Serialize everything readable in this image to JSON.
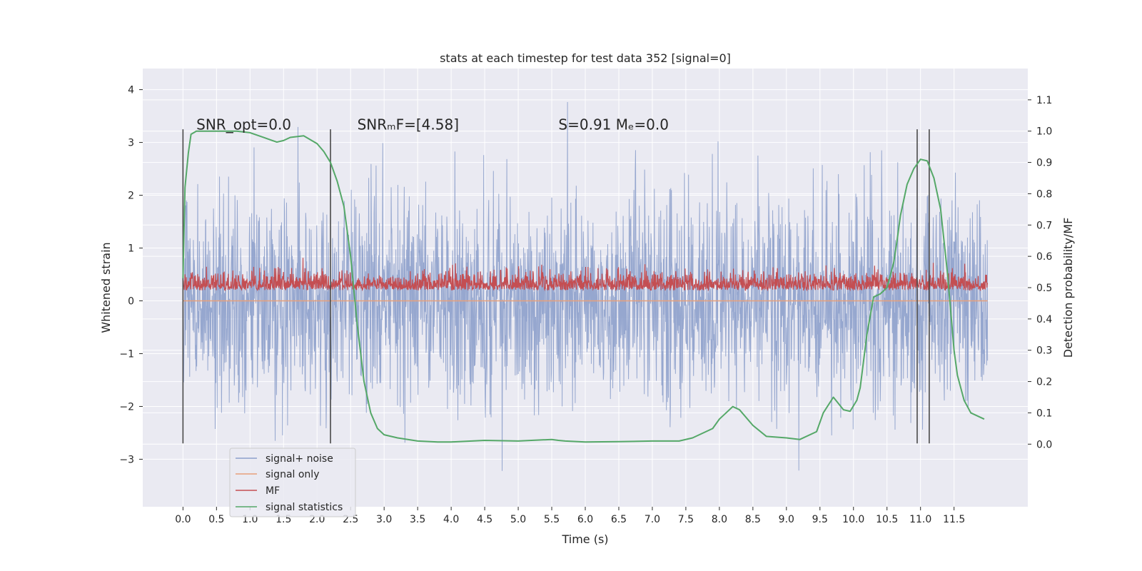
{
  "chart_data": {
    "type": "line",
    "title": "stats at each timestep for test data 352 [signal=0]",
    "xlabel": "Time (s)",
    "ylabel": "Whitened strain",
    "ylabel_right": "Detection probability/MF",
    "xlim": [
      -0.6,
      12.6
    ],
    "ylim": [
      -3.9,
      4.4
    ],
    "ylim_right": [
      -0.2,
      1.2
    ],
    "x_ticks": [
      "0.0",
      "0.5",
      "1.0",
      "1.5",
      "2.0",
      "2.5",
      "3.0",
      "3.5",
      "4.0",
      "4.5",
      "5.0",
      "5.5",
      "6.0",
      "6.5",
      "7.0",
      "7.5",
      "8.0",
      "8.5",
      "9.0",
      "9.5",
      "10.0",
      "10.5",
      "11.0",
      "11.5"
    ],
    "y_ticks_left": [
      "4",
      "3",
      "2",
      "1",
      "0",
      "−1",
      "−2",
      "−3"
    ],
    "y_ticks_right": [
      "1.1",
      "1.0",
      "0.9",
      "0.8",
      "0.7",
      "0.6",
      "0.5",
      "0.4",
      "0.3",
      "0.2",
      "0.1",
      "0.0"
    ],
    "grid": true,
    "legend_placement": "lower-left",
    "vertical_markers_x": [
      0.0,
      2.2,
      10.95,
      11.13
    ],
    "vertical_markers_ylim": [
      -2.7,
      3.25
    ],
    "annotations": [
      {
        "id": "snr-opt",
        "text": "SNR_opt=0.0",
        "x": 0.2,
        "y": 3.35
      },
      {
        "id": "snr-mf",
        "text": "SNRₘF=[4.58]",
        "x": 2.6,
        "y": 3.35
      },
      {
        "id": "s-mc",
        "text": "S=0.91   Mₑ=0.0",
        "x": 5.6,
        "y": 3.35
      }
    ],
    "series": [
      {
        "name": "signal+ noise",
        "color": "#8da0cb",
        "axis": "left",
        "kind": "noise",
        "x_range": [
          0.0,
          12.0
        ],
        "approx_sigma": 1.0,
        "approx_range": [
          -3.4,
          4.1
        ]
      },
      {
        "name": "signal only",
        "color": "#e8a07a",
        "axis": "left",
        "kind": "flat",
        "x": [
          0.0,
          12.0
        ],
        "y": [
          0.0,
          0.0
        ]
      },
      {
        "name": "MF",
        "color": "#c44e52",
        "axis": "left",
        "kind": "noise",
        "x_range": [
          0.0,
          12.0
        ],
        "approx_baseline": 0.25,
        "approx_range": [
          0.0,
          1.0
        ]
      },
      {
        "name": "signal statistics",
        "color": "#55a868",
        "axis": "right",
        "kind": "line",
        "x": [
          0.0,
          0.03,
          0.08,
          0.12,
          0.2,
          0.4,
          0.8,
          1.0,
          1.2,
          1.4,
          1.5,
          1.6,
          1.8,
          2.0,
          2.1,
          2.2,
          2.3,
          2.4,
          2.5,
          2.6,
          2.7,
          2.8,
          2.9,
          3.0,
          3.2,
          3.5,
          3.8,
          4.0,
          4.5,
          5.0,
          5.5,
          5.6,
          5.7,
          6.0,
          6.5,
          7.0,
          7.4,
          7.6,
          7.8,
          7.9,
          8.0,
          8.1,
          8.2,
          8.3,
          8.5,
          8.7,
          9.0,
          9.2,
          9.45,
          9.55,
          9.7,
          9.85,
          9.95,
          10.05,
          10.1,
          10.2,
          10.3,
          10.4,
          10.5,
          10.6,
          10.65,
          10.7,
          10.8,
          10.9,
          11.0,
          11.1,
          11.2,
          11.3,
          11.4,
          11.5,
          11.55,
          11.65,
          11.75,
          11.85,
          11.95
        ],
        "y": [
          0.53,
          0.82,
          0.93,
          0.99,
          1.0,
          1.0,
          1.0,
          0.995,
          0.98,
          0.965,
          0.97,
          0.98,
          0.985,
          0.96,
          0.935,
          0.9,
          0.84,
          0.76,
          0.6,
          0.38,
          0.2,
          0.1,
          0.05,
          0.03,
          0.02,
          0.01,
          0.007,
          0.007,
          0.012,
          0.01,
          0.015,
          0.012,
          0.01,
          0.007,
          0.008,
          0.01,
          0.01,
          0.02,
          0.04,
          0.05,
          0.08,
          0.1,
          0.12,
          0.11,
          0.06,
          0.025,
          0.02,
          0.015,
          0.04,
          0.1,
          0.15,
          0.11,
          0.105,
          0.14,
          0.18,
          0.35,
          0.47,
          0.48,
          0.5,
          0.58,
          0.65,
          0.73,
          0.83,
          0.88,
          0.91,
          0.905,
          0.85,
          0.75,
          0.55,
          0.3,
          0.22,
          0.14,
          0.1,
          0.09,
          0.08
        ]
      }
    ]
  }
}
